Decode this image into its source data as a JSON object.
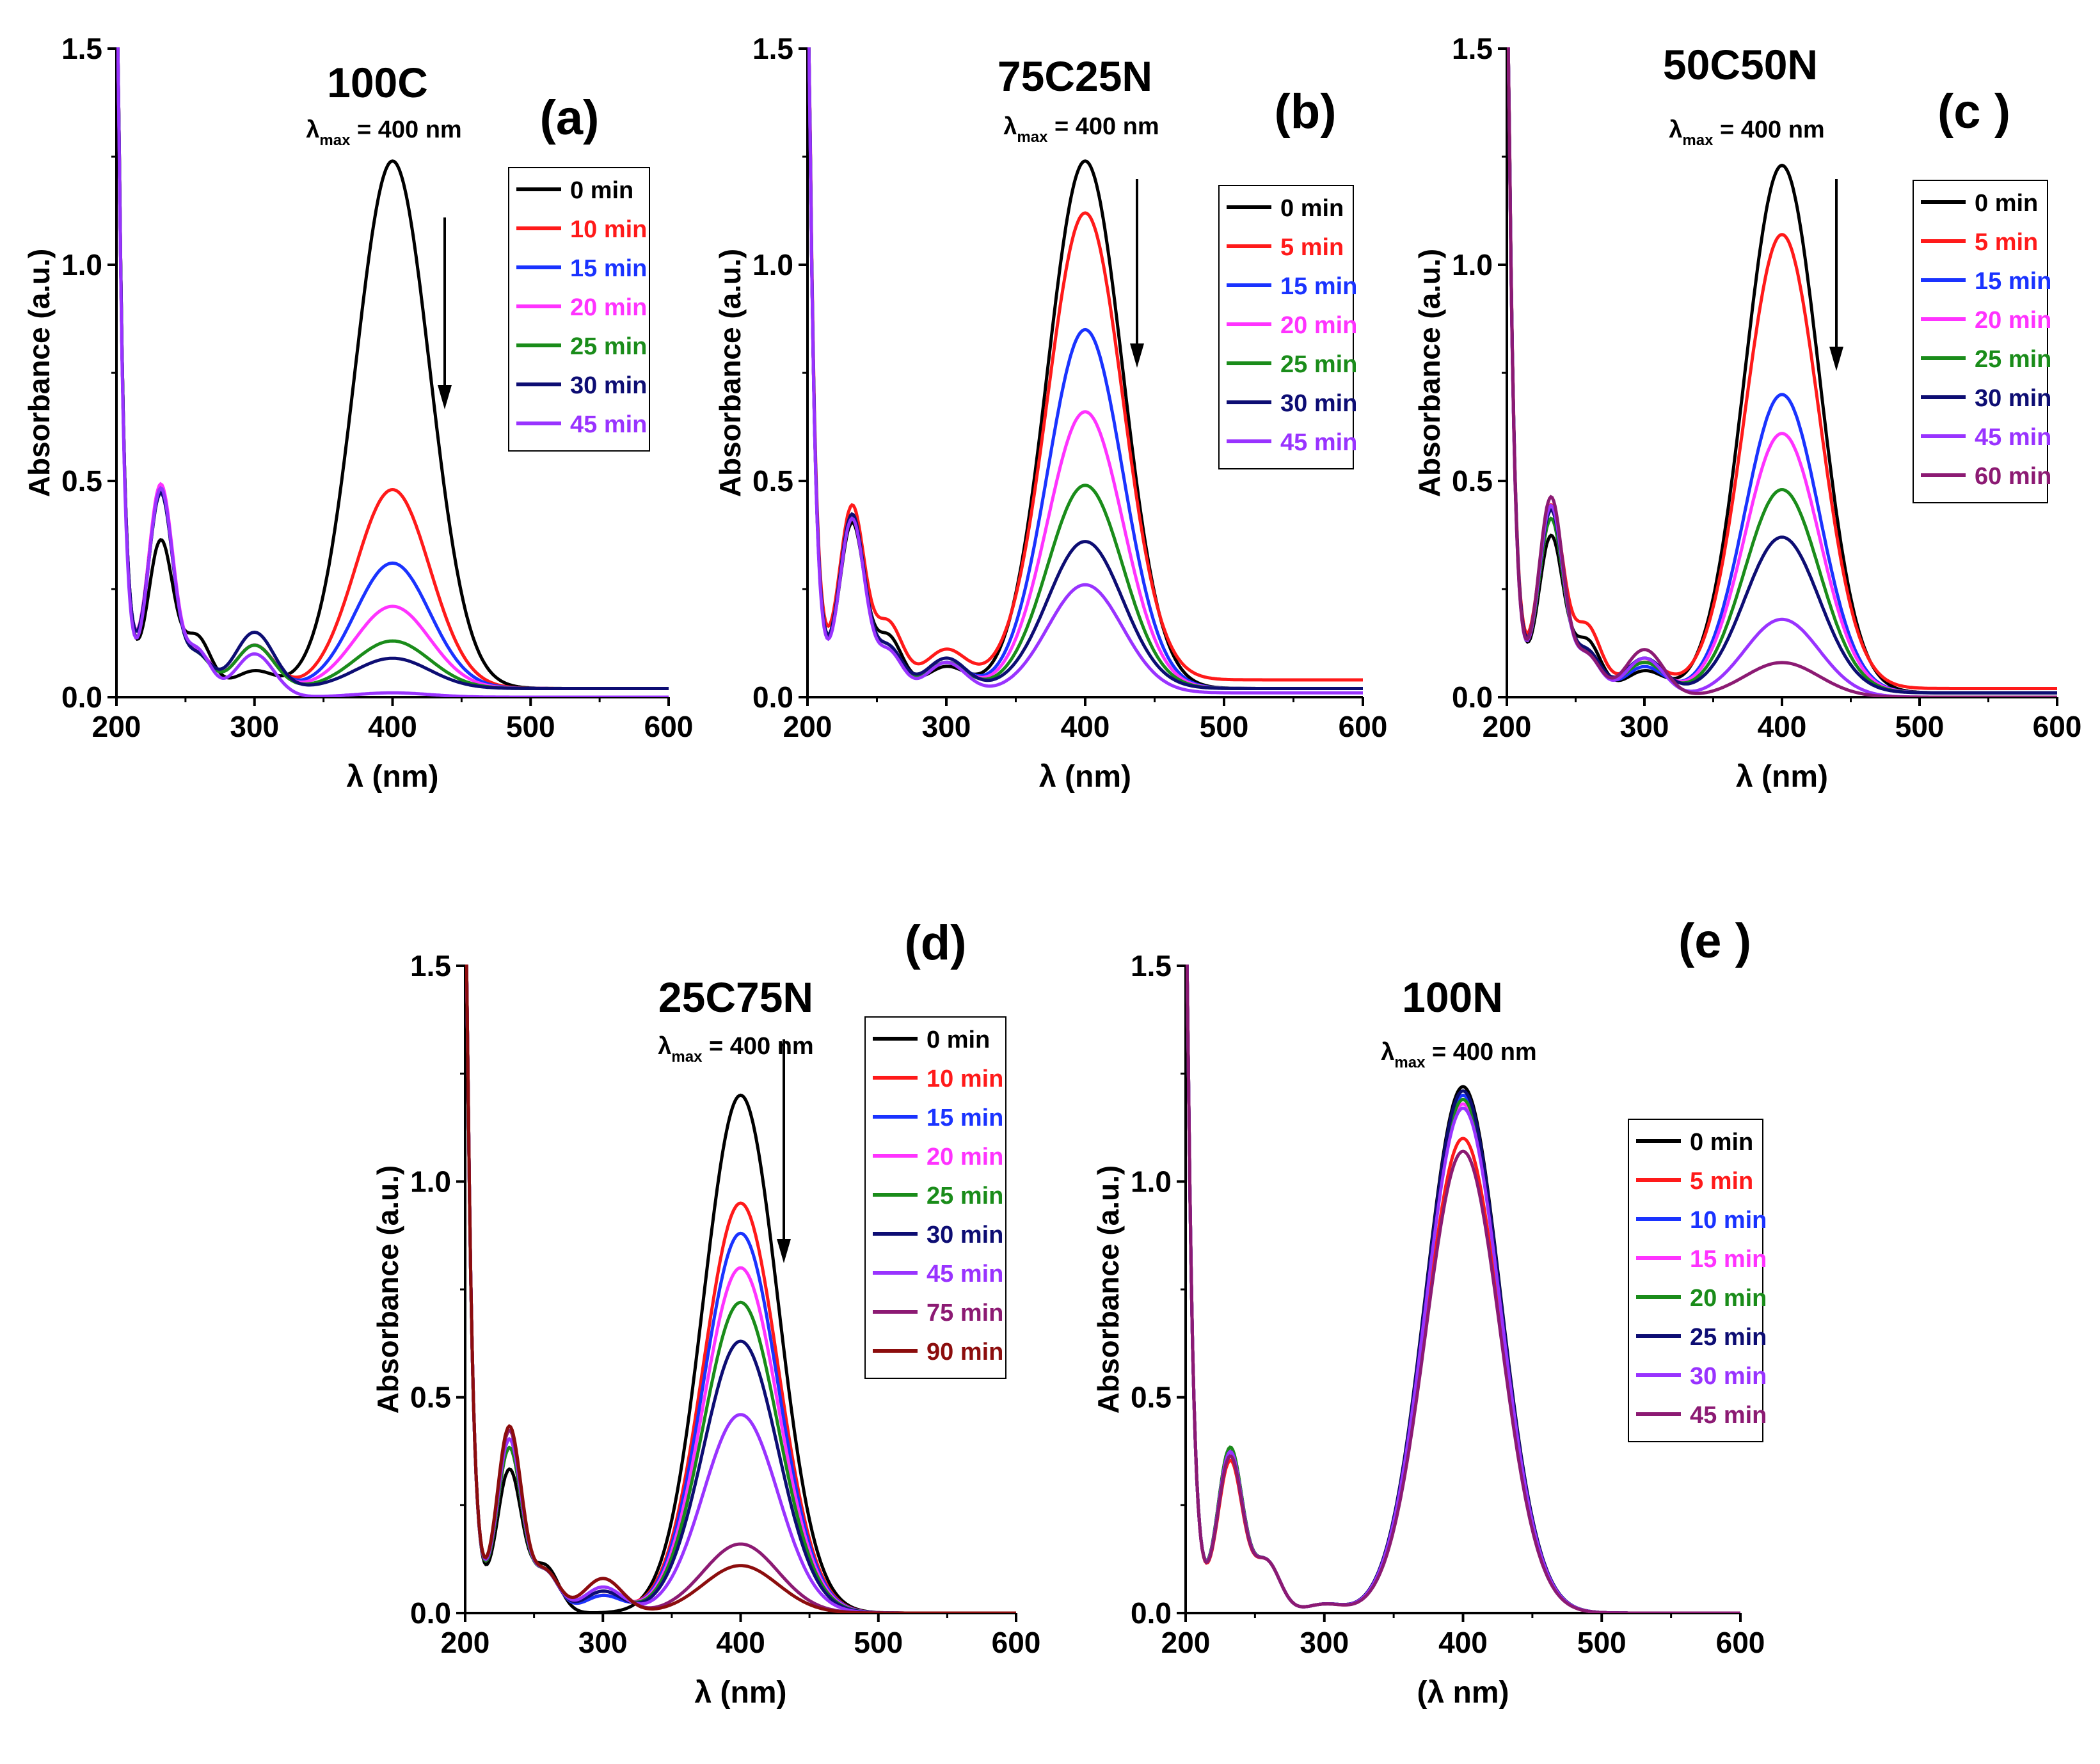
{
  "panel_id_template": "(X)",
  "lambda_max_symbol": "λ",
  "lambda_max_sub": "max",
  "lambda_max_value": " = 400 nm",
  "colors": {
    "black": "#000000",
    "red": "#ff1a1a",
    "blue": "#1a33ff",
    "magenta": "#ff33ff",
    "green": "#1a8c1a",
    "navy": "#0d0d73",
    "violet": "#9933ff",
    "purple": "#8c1a73",
    "maroon": "#8c0d0d"
  },
  "chart_data": [
    {
      "id": "a",
      "panel_label": "(a)",
      "title": "100C",
      "lambda_max": "400",
      "type": "line",
      "xlabel": "λ (nm)",
      "ylabel": "Absorbance (a.u.)",
      "xlim": [
        200,
        600
      ],
      "ylim": [
        0,
        1.5
      ],
      "xticks": [
        "200",
        "300",
        "400",
        "500",
        "600"
      ],
      "yticks": [
        "0.0",
        "0.5",
        "1.0",
        "1.5"
      ],
      "series": [
        {
          "name": "0 min",
          "color": "black",
          "peak400": 1.22,
          "peak300": 0.04,
          "band230": 0.34,
          "baseline": 0.02,
          "tail": 0.2
        },
        {
          "name": "10 min",
          "color": "red",
          "peak400": 0.46,
          "peak300": 0.1,
          "band230": 0.46,
          "baseline": 0.02,
          "tail": 0.14
        },
        {
          "name": "15 min",
          "color": "blue",
          "peak400": 0.29,
          "peak300": 0.1,
          "band230": 0.46,
          "baseline": 0.02,
          "tail": 0.14
        },
        {
          "name": "20 min",
          "color": "magenta",
          "peak400": 0.19,
          "peak300": 0.1,
          "band230": 0.47,
          "baseline": 0.02,
          "tail": 0.14
        },
        {
          "name": "25 min",
          "color": "green",
          "peak400": 0.11,
          "peak300": 0.1,
          "band230": 0.45,
          "baseline": 0.02,
          "tail": 0.13
        },
        {
          "name": "30 min",
          "color": "navy",
          "peak400": 0.07,
          "peak300": 0.13,
          "band230": 0.45,
          "baseline": 0.02,
          "tail": 0.13
        },
        {
          "name": "45 min",
          "color": "violet",
          "peak400": 0.01,
          "peak300": 0.1,
          "band230": 0.48,
          "baseline": 0.0,
          "tail": 0.18
        }
      ]
    },
    {
      "id": "b",
      "panel_label": "(b)",
      "title": "75C25N",
      "lambda_max": "400",
      "type": "line",
      "xlabel": "λ (nm)",
      "ylabel": "Absorbance (a.u.)",
      "xlim": [
        200,
        600
      ],
      "ylim": [
        0,
        1.5
      ],
      "xticks": [
        "200",
        "300",
        "400",
        "500",
        "600"
      ],
      "yticks": [
        "0.0",
        "0.5",
        "1.0",
        "1.5"
      ],
      "series": [
        {
          "name": "0 min",
          "color": "black",
          "peak400": 1.22,
          "peak300": 0.05,
          "band230": 0.38,
          "baseline": 0.02,
          "tail": 0.2
        },
        {
          "name": "5 min",
          "color": "red",
          "peak400": 1.08,
          "peak300": 0.07,
          "band230": 0.4,
          "baseline": 0.04,
          "tail": 0.22
        },
        {
          "name": "15 min",
          "color": "blue",
          "peak400": 0.83,
          "peak300": 0.06,
          "band230": 0.4,
          "baseline": 0.02,
          "tail": 0.16
        },
        {
          "name": "20 min",
          "color": "magenta",
          "peak400": 0.64,
          "peak300": 0.06,
          "band230": 0.4,
          "baseline": 0.02,
          "tail": 0.16
        },
        {
          "name": "25 min",
          "color": "green",
          "peak400": 0.47,
          "peak300": 0.06,
          "band230": 0.4,
          "baseline": 0.02,
          "tail": 0.16
        },
        {
          "name": "30 min",
          "color": "navy",
          "peak400": 0.34,
          "peak300": 0.07,
          "band230": 0.4,
          "baseline": 0.02,
          "tail": 0.16
        },
        {
          "name": "45 min",
          "color": "violet",
          "peak400": 0.25,
          "peak300": 0.07,
          "band230": 0.4,
          "baseline": 0.01,
          "tail": 0.16
        }
      ]
    },
    {
      "id": "c",
      "panel_label": "(c )",
      "title": "50C50N",
      "lambda_max": "400",
      "type": "line",
      "xlabel": "λ (nm)",
      "ylabel": "Absorbance (a.u.)",
      "xlim": [
        200,
        600
      ],
      "ylim": [
        0,
        1.5
      ],
      "xticks": [
        "200",
        "300",
        "400",
        "500",
        "600"
      ],
      "yticks": [
        "0.0",
        "0.5",
        "1.0",
        "1.5"
      ],
      "series": [
        {
          "name": "0 min",
          "color": "black",
          "peak400": 1.22,
          "peak300": 0.05,
          "band230": 0.36,
          "baseline": 0.01,
          "tail": 0.2
        },
        {
          "name": "5 min",
          "color": "red",
          "peak400": 1.05,
          "peak300": 0.06,
          "band230": 0.42,
          "baseline": 0.02,
          "tail": 0.24
        },
        {
          "name": "15 min",
          "color": "blue",
          "peak400": 0.69,
          "peak300": 0.06,
          "band230": 0.4,
          "baseline": 0.01,
          "tail": 0.16
        },
        {
          "name": "20 min",
          "color": "magenta",
          "peak400": 0.6,
          "peak300": 0.07,
          "band230": 0.4,
          "baseline": 0.01,
          "tail": 0.16
        },
        {
          "name": "25 min",
          "color": "green",
          "peak400": 0.47,
          "peak300": 0.07,
          "band230": 0.4,
          "baseline": 0.01,
          "tail": 0.16
        },
        {
          "name": "30 min",
          "color": "navy",
          "peak400": 0.36,
          "peak300": 0.08,
          "band230": 0.42,
          "baseline": 0.01,
          "tail": 0.16
        },
        {
          "name": "45 min",
          "color": "violet",
          "peak400": 0.18,
          "peak300": 0.09,
          "band230": 0.44,
          "baseline": 0.0,
          "tail": 0.16
        },
        {
          "name": "60 min",
          "color": "purple",
          "peak400": 0.08,
          "peak300": 0.11,
          "band230": 0.46,
          "baseline": 0.0,
          "tail": 0.16
        }
      ]
    },
    {
      "id": "d",
      "panel_label": "(d)",
      "title": "25C75N",
      "lambda_max": "400",
      "type": "line",
      "xlabel": "λ (nm)",
      "ylabel": "Absorbance (a.u.)",
      "xlim": [
        200,
        600
      ],
      "ylim": [
        0,
        1.5
      ],
      "xticks": [
        "200",
        "300",
        "400",
        "500",
        "600"
      ],
      "yticks": [
        "0.0",
        "0.5",
        "1.0",
        "1.5"
      ],
      "series": [
        {
          "name": "0 min",
          "color": "black",
          "peak400": 1.2,
          "peak300": 0.0,
          "band230": 0.33,
          "baseline": 0.0,
          "tail": 0.18
        },
        {
          "name": "10 min",
          "color": "red",
          "peak400": 0.95,
          "peak300": 0.04,
          "band230": 0.38,
          "baseline": 0.0,
          "tail": 0.16
        },
        {
          "name": "15 min",
          "color": "blue",
          "peak400": 0.88,
          "peak300": 0.04,
          "band230": 0.38,
          "baseline": 0.0,
          "tail": 0.16
        },
        {
          "name": "20 min",
          "color": "magenta",
          "peak400": 0.8,
          "peak300": 0.05,
          "band230": 0.38,
          "baseline": 0.0,
          "tail": 0.16
        },
        {
          "name": "25 min",
          "color": "green",
          "peak400": 0.72,
          "peak300": 0.05,
          "band230": 0.38,
          "baseline": 0.0,
          "tail": 0.16
        },
        {
          "name": "30 min",
          "color": "navy",
          "peak400": 0.63,
          "peak300": 0.05,
          "band230": 0.4,
          "baseline": 0.0,
          "tail": 0.16
        },
        {
          "name": "45 min",
          "color": "violet",
          "peak400": 0.46,
          "peak300": 0.06,
          "band230": 0.4,
          "baseline": 0.0,
          "tail": 0.16
        },
        {
          "name": "75 min",
          "color": "purple",
          "peak400": 0.16,
          "peak300": 0.08,
          "band230": 0.42,
          "baseline": 0.0,
          "tail": 0.16
        },
        {
          "name": "90 min",
          "color": "maroon",
          "peak400": 0.11,
          "peak300": 0.08,
          "band230": 0.43,
          "baseline": 0.0,
          "tail": 0.16
        }
      ]
    },
    {
      "id": "e",
      "panel_label": "(e )",
      "title": "100N",
      "lambda_max": "400",
      "type": "line",
      "xlabel": "(λ nm)",
      "ylabel": "Absorbance (a.u.)",
      "xlim": [
        200,
        600
      ],
      "ylim": [
        0,
        1.5
      ],
      "xticks": [
        "200",
        "300",
        "400",
        "500",
        "600"
      ],
      "yticks": [
        "0.0",
        "0.5",
        "1.0",
        "1.5"
      ],
      "series": [
        {
          "name": "0 min",
          "color": "black",
          "peak400": 1.22,
          "peak300": 0.02,
          "band230": 0.38,
          "baseline": 0.0,
          "tail": 0.2
        },
        {
          "name": "5 min",
          "color": "red",
          "peak400": 1.1,
          "peak300": 0.02,
          "band230": 0.35,
          "baseline": 0.0,
          "tail": 0.2
        },
        {
          "name": "10 min",
          "color": "blue",
          "peak400": 1.2,
          "peak300": 0.02,
          "band230": 0.37,
          "baseline": 0.0,
          "tail": 0.2
        },
        {
          "name": "15 min",
          "color": "magenta",
          "peak400": 1.18,
          "peak300": 0.02,
          "band230": 0.37,
          "baseline": 0.0,
          "tail": 0.2
        },
        {
          "name": "20 min",
          "color": "green",
          "peak400": 1.19,
          "peak300": 0.02,
          "band230": 0.38,
          "baseline": 0.0,
          "tail": 0.2
        },
        {
          "name": "25 min",
          "color": "navy",
          "peak400": 1.21,
          "peak300": 0.02,
          "band230": 0.37,
          "baseline": 0.0,
          "tail": 0.2
        },
        {
          "name": "30 min",
          "color": "violet",
          "peak400": 1.17,
          "peak300": 0.02,
          "band230": 0.37,
          "baseline": 0.0,
          "tail": 0.2
        },
        {
          "name": "45 min",
          "color": "purple",
          "peak400": 1.07,
          "peak300": 0.02,
          "band230": 0.36,
          "baseline": 0.0,
          "tail": 0.2
        }
      ]
    }
  ]
}
